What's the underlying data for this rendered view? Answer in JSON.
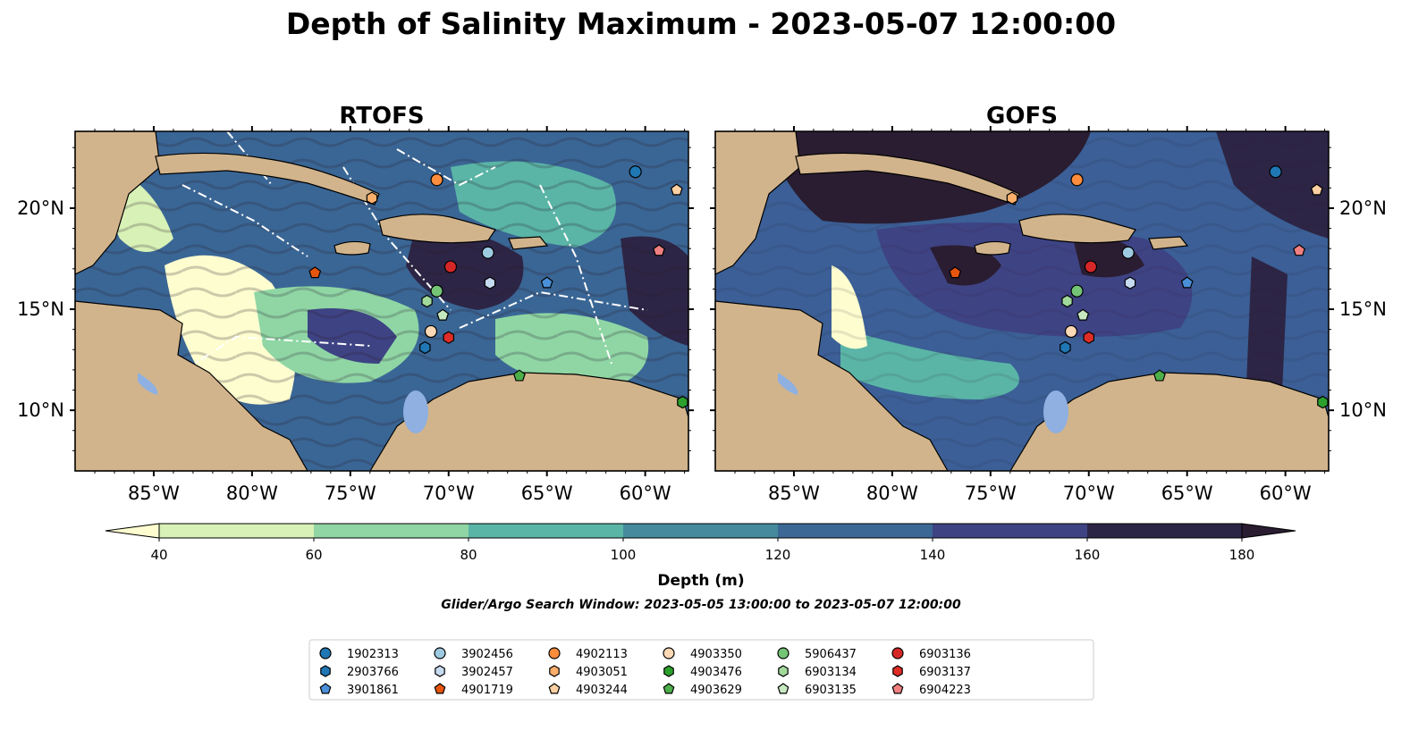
{
  "figure": {
    "title": "Depth of Salinity Maximum - 2023-05-07 12:00:00",
    "search_window": "Glider/Argo Search Window: 2023-05-05 13:00:00 to 2023-05-07 12:00:00"
  },
  "panels": [
    {
      "id": "rtofs",
      "title": "RTOFS",
      "base_color": "#3a6695"
    },
    {
      "id": "gofs",
      "title": "GOFS",
      "base_color": "#3b5f96"
    }
  ],
  "map_extent": {
    "lon": [
      -89,
      -57.8
    ],
    "lat": [
      7,
      23.8
    ]
  },
  "lon_ticks": [
    "85°W",
    "80°W",
    "75°W",
    "70°W",
    "65°W",
    "60°W"
  ],
  "lon_tick_values": [
    -85,
    -80,
    -75,
    -70,
    -65,
    -60
  ],
  "lat_ticks": [
    "10°N",
    "15°N",
    "20°N"
  ],
  "lat_tick_values": [
    10,
    15,
    20
  ],
  "colors": {
    "land": "#d2b48c",
    "lake": "#8fb0e0",
    "river": "#a6bddb"
  },
  "colorbar": {
    "label": "Depth (m)",
    "tick_labels": [
      "40",
      "60",
      "80",
      "100",
      "120",
      "140",
      "160",
      "180"
    ],
    "levels": [
      40,
      60,
      80,
      100,
      120,
      140,
      160,
      180
    ],
    "colors": [
      "#d8f1b6",
      "#8fd6a4",
      "#5ab5a6",
      "#458b9d",
      "#3b6895",
      "#3e4384",
      "#2d2545"
    ],
    "under_color": "#fdfdcf",
    "over_color": "#2a1d31"
  },
  "floats": [
    {
      "id": "1902313",
      "marker": "circle",
      "color": "#1f77b4",
      "lon": -60.5,
      "lat": 21.8
    },
    {
      "id": "2903766",
      "marker": "hexagon",
      "color": "#1f77b4",
      "lon": -71.2,
      "lat": 13.1
    },
    {
      "id": "3901861",
      "marker": "pentagon",
      "color": "#4a90d9",
      "lon": -65,
      "lat": 16.3
    },
    {
      "id": "3902456",
      "marker": "circle",
      "color": "#9ecae1",
      "lon": -68,
      "lat": 17.8
    },
    {
      "id": "3902457",
      "marker": "hexagon",
      "color": "#c6dbef",
      "lon": -67.9,
      "lat": 16.3
    },
    {
      "id": "4901719",
      "marker": "pentagon",
      "color": "#e6550d",
      "lon": -76.8,
      "lat": 16.8
    },
    {
      "id": "4902113",
      "marker": "circle",
      "color": "#fd8d3c",
      "lon": -70.6,
      "lat": 21.4
    },
    {
      "id": "4903051",
      "marker": "hexagon",
      "color": "#fdae6b",
      "lon": -73.9,
      "lat": 20.5
    },
    {
      "id": "4903244",
      "marker": "pentagon",
      "color": "#fdd0a2",
      "lon": -58.4,
      "lat": 20.9
    },
    {
      "id": "4903350",
      "marker": "circle",
      "color": "#fdd9b5",
      "lon": -70.9,
      "lat": 13.9
    },
    {
      "id": "4903476",
      "marker": "hexagon",
      "color": "#2ca02c",
      "lon": -58.1,
      "lat": 10.4
    },
    {
      "id": "4903629",
      "marker": "pentagon",
      "color": "#4daf4a",
      "lon": -66.4,
      "lat": 11.7
    },
    {
      "id": "5906437",
      "marker": "circle",
      "color": "#74c476",
      "lon": -70.6,
      "lat": 15.9
    },
    {
      "id": "6903134",
      "marker": "hexagon",
      "color": "#a1d99b",
      "lon": -71.1,
      "lat": 15.4
    },
    {
      "id": "6903135",
      "marker": "pentagon",
      "color": "#c7e9c0",
      "lon": -70.3,
      "lat": 14.7
    },
    {
      "id": "6903136",
      "marker": "circle",
      "color": "#d62728",
      "lon": -69.9,
      "lat": 17.1
    },
    {
      "id": "6903137",
      "marker": "hexagon",
      "color": "#de2d26",
      "lon": -70,
      "lat": 13.6
    },
    {
      "id": "6904223",
      "marker": "pentagon",
      "color": "#f08080",
      "lon": -59.3,
      "lat": 17.9
    }
  ]
}
